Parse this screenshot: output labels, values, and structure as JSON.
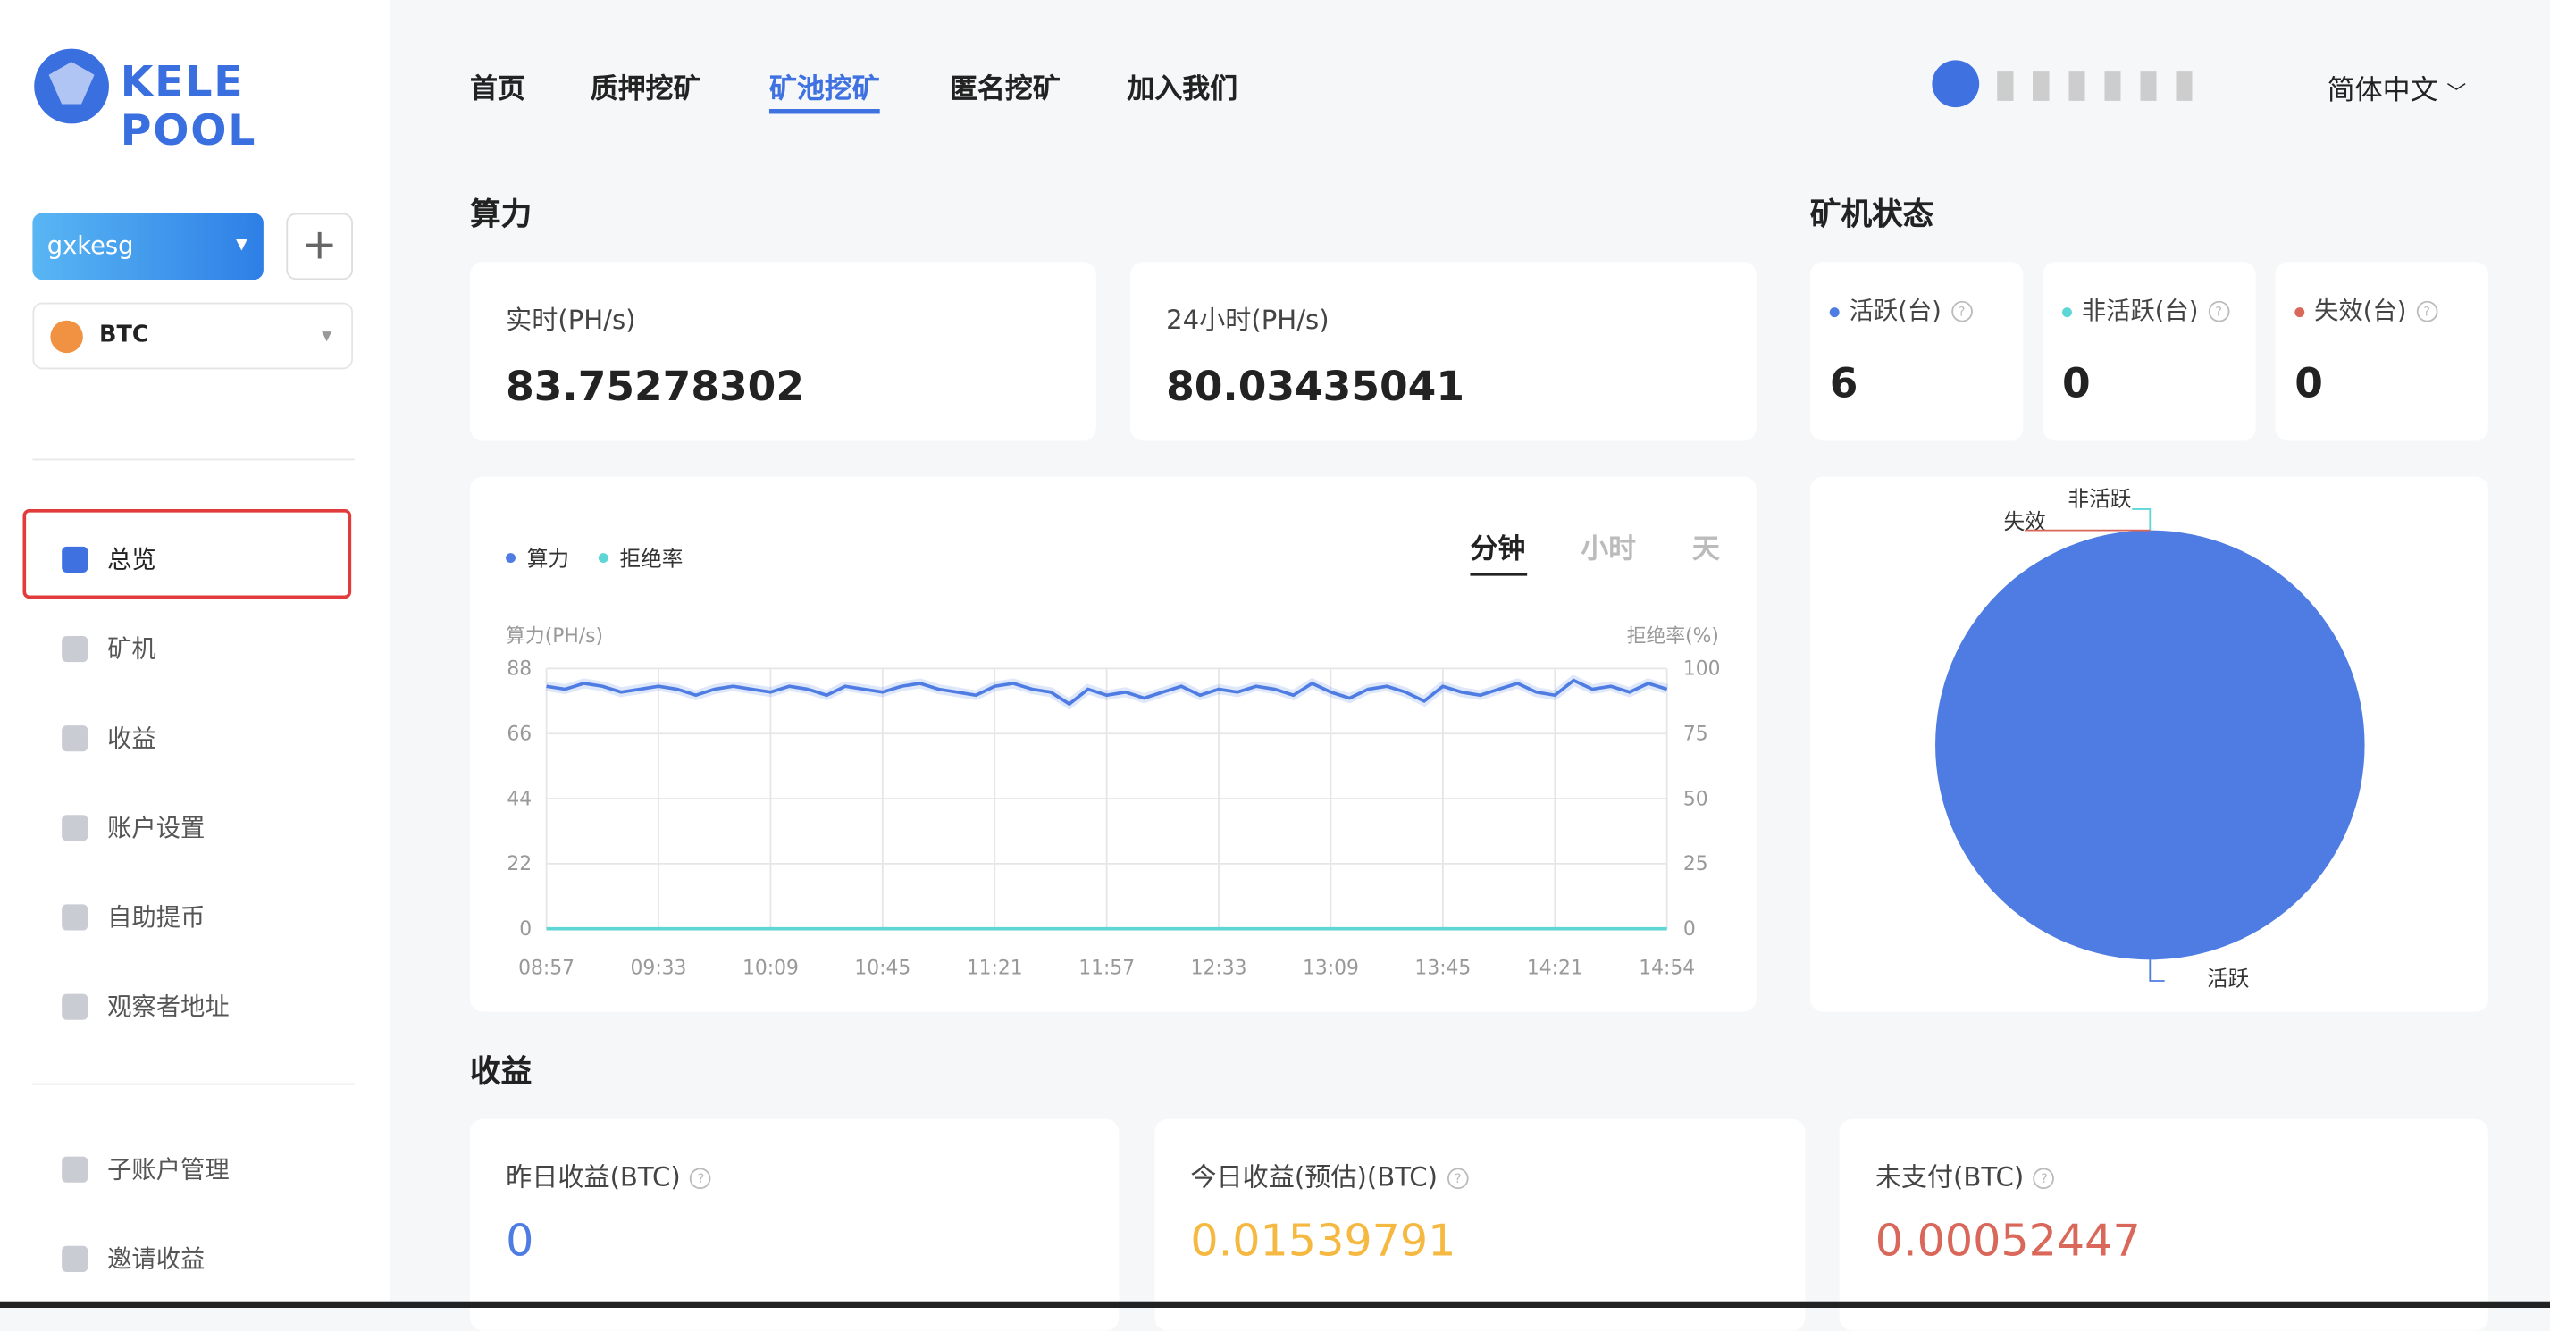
{
  "logo": "KELE POOL",
  "sidebar": {
    "account": "gxkesg",
    "coin": "BTC",
    "menu": [
      "总览",
      "矿机",
      "收益",
      "账户设置",
      "自助提币",
      "观察者地址",
      "子账户管理",
      "邀请收益"
    ]
  },
  "nav": {
    "links": [
      "首页",
      "质押挖矿",
      "矿池挖矿",
      "匿名挖矿",
      "加入我们"
    ],
    "language": "简体中文"
  },
  "hashrate": {
    "title": "算力",
    "cards": [
      {
        "label": "实时(PH/s)",
        "value": 83.75278302
      },
      {
        "label": "24小时(PH/s)",
        "value": 80.03435041
      }
    ]
  },
  "miners": {
    "title": "矿机状态",
    "cards": [
      {
        "label": "活跃(台)",
        "value": 6
      },
      {
        "label": "非活跃(台)",
        "value": 0
      },
      {
        "label": "失效(台)",
        "value": 0
      }
    ]
  },
  "chart_data": [
    {
      "type": "line",
      "y_label": "算力(PH/s)",
      "y2_label": "拒绝率(%)",
      "tabs": [
        "分钟",
        "小时",
        "天"
      ],
      "categories": [
        "08:57",
        null,
        null,
        null,
        null,
        null,
        "09:33",
        null,
        null,
        null,
        null,
        null,
        "10:09",
        null,
        null,
        null,
        null,
        null,
        "10:45",
        null,
        null,
        null,
        null,
        null,
        "11:21",
        null,
        null,
        null,
        null,
        null,
        "11:57",
        null,
        null,
        null,
        null,
        null,
        "12:33",
        null,
        null,
        null,
        null,
        null,
        "13:09",
        null,
        null,
        null,
        null,
        null,
        "13:45",
        null,
        null,
        null,
        null,
        null,
        "14:21",
        null,
        null,
        null,
        null,
        null,
        "14:54"
      ],
      "series": [
        {
          "name": "算力",
          "color": "#4e7ce2",
          "values": [
            82,
            81,
            83,
            82,
            80,
            81,
            82,
            81,
            79,
            81,
            82,
            81,
            80,
            82,
            81,
            79,
            82,
            81,
            80,
            82,
            83,
            81,
            80,
            79,
            82,
            83,
            81,
            80,
            76,
            81,
            79,
            80,
            78,
            80,
            82,
            79,
            81,
            80,
            82,
            81,
            79,
            83,
            80,
            78,
            81,
            82,
            80,
            77,
            82,
            80,
            79,
            81,
            83,
            80,
            79,
            84,
            81,
            82,
            80,
            83,
            81
          ]
        },
        {
          "name": "拒绝率",
          "color": "#5fd6d6",
          "axis": "y2",
          "values": [
            0,
            0,
            0,
            0,
            0,
            0,
            0,
            0,
            0,
            0,
            0,
            0,
            0,
            0,
            0,
            0,
            0,
            0,
            0,
            0,
            0,
            0,
            0,
            0,
            0,
            0,
            0,
            0,
            0,
            0,
            0,
            0,
            0,
            0,
            0,
            0,
            0,
            0,
            0,
            0,
            0,
            0,
            0,
            0,
            0,
            0,
            0,
            0,
            0,
            0,
            0,
            0,
            0,
            0,
            0,
            0,
            0,
            0,
            0,
            0,
            0
          ]
        }
      ],
      "ylim": [
        0,
        88
      ],
      "yticks": [
        0,
        22,
        44,
        66,
        88
      ],
      "y2lim": [
        0,
        100
      ],
      "y2ticks": [
        0,
        25,
        50,
        75,
        100
      ],
      "grid": true
    },
    {
      "type": "pie",
      "categories": [
        "活跃",
        "非活跃",
        "失效"
      ],
      "values": [
        6,
        0,
        0
      ],
      "colors": [
        "#4e7ce2",
        "#5fd6d6",
        "#d9675a"
      ]
    }
  ],
  "earnings": {
    "title": "收益",
    "cards": [
      {
        "label": "昨日收益(BTC)",
        "value": 0
      },
      {
        "label": "今日收益(预估)(BTC)",
        "value": 0.01539791
      },
      {
        "label": "未支付(BTC)",
        "value": 0.00052447
      }
    ]
  }
}
